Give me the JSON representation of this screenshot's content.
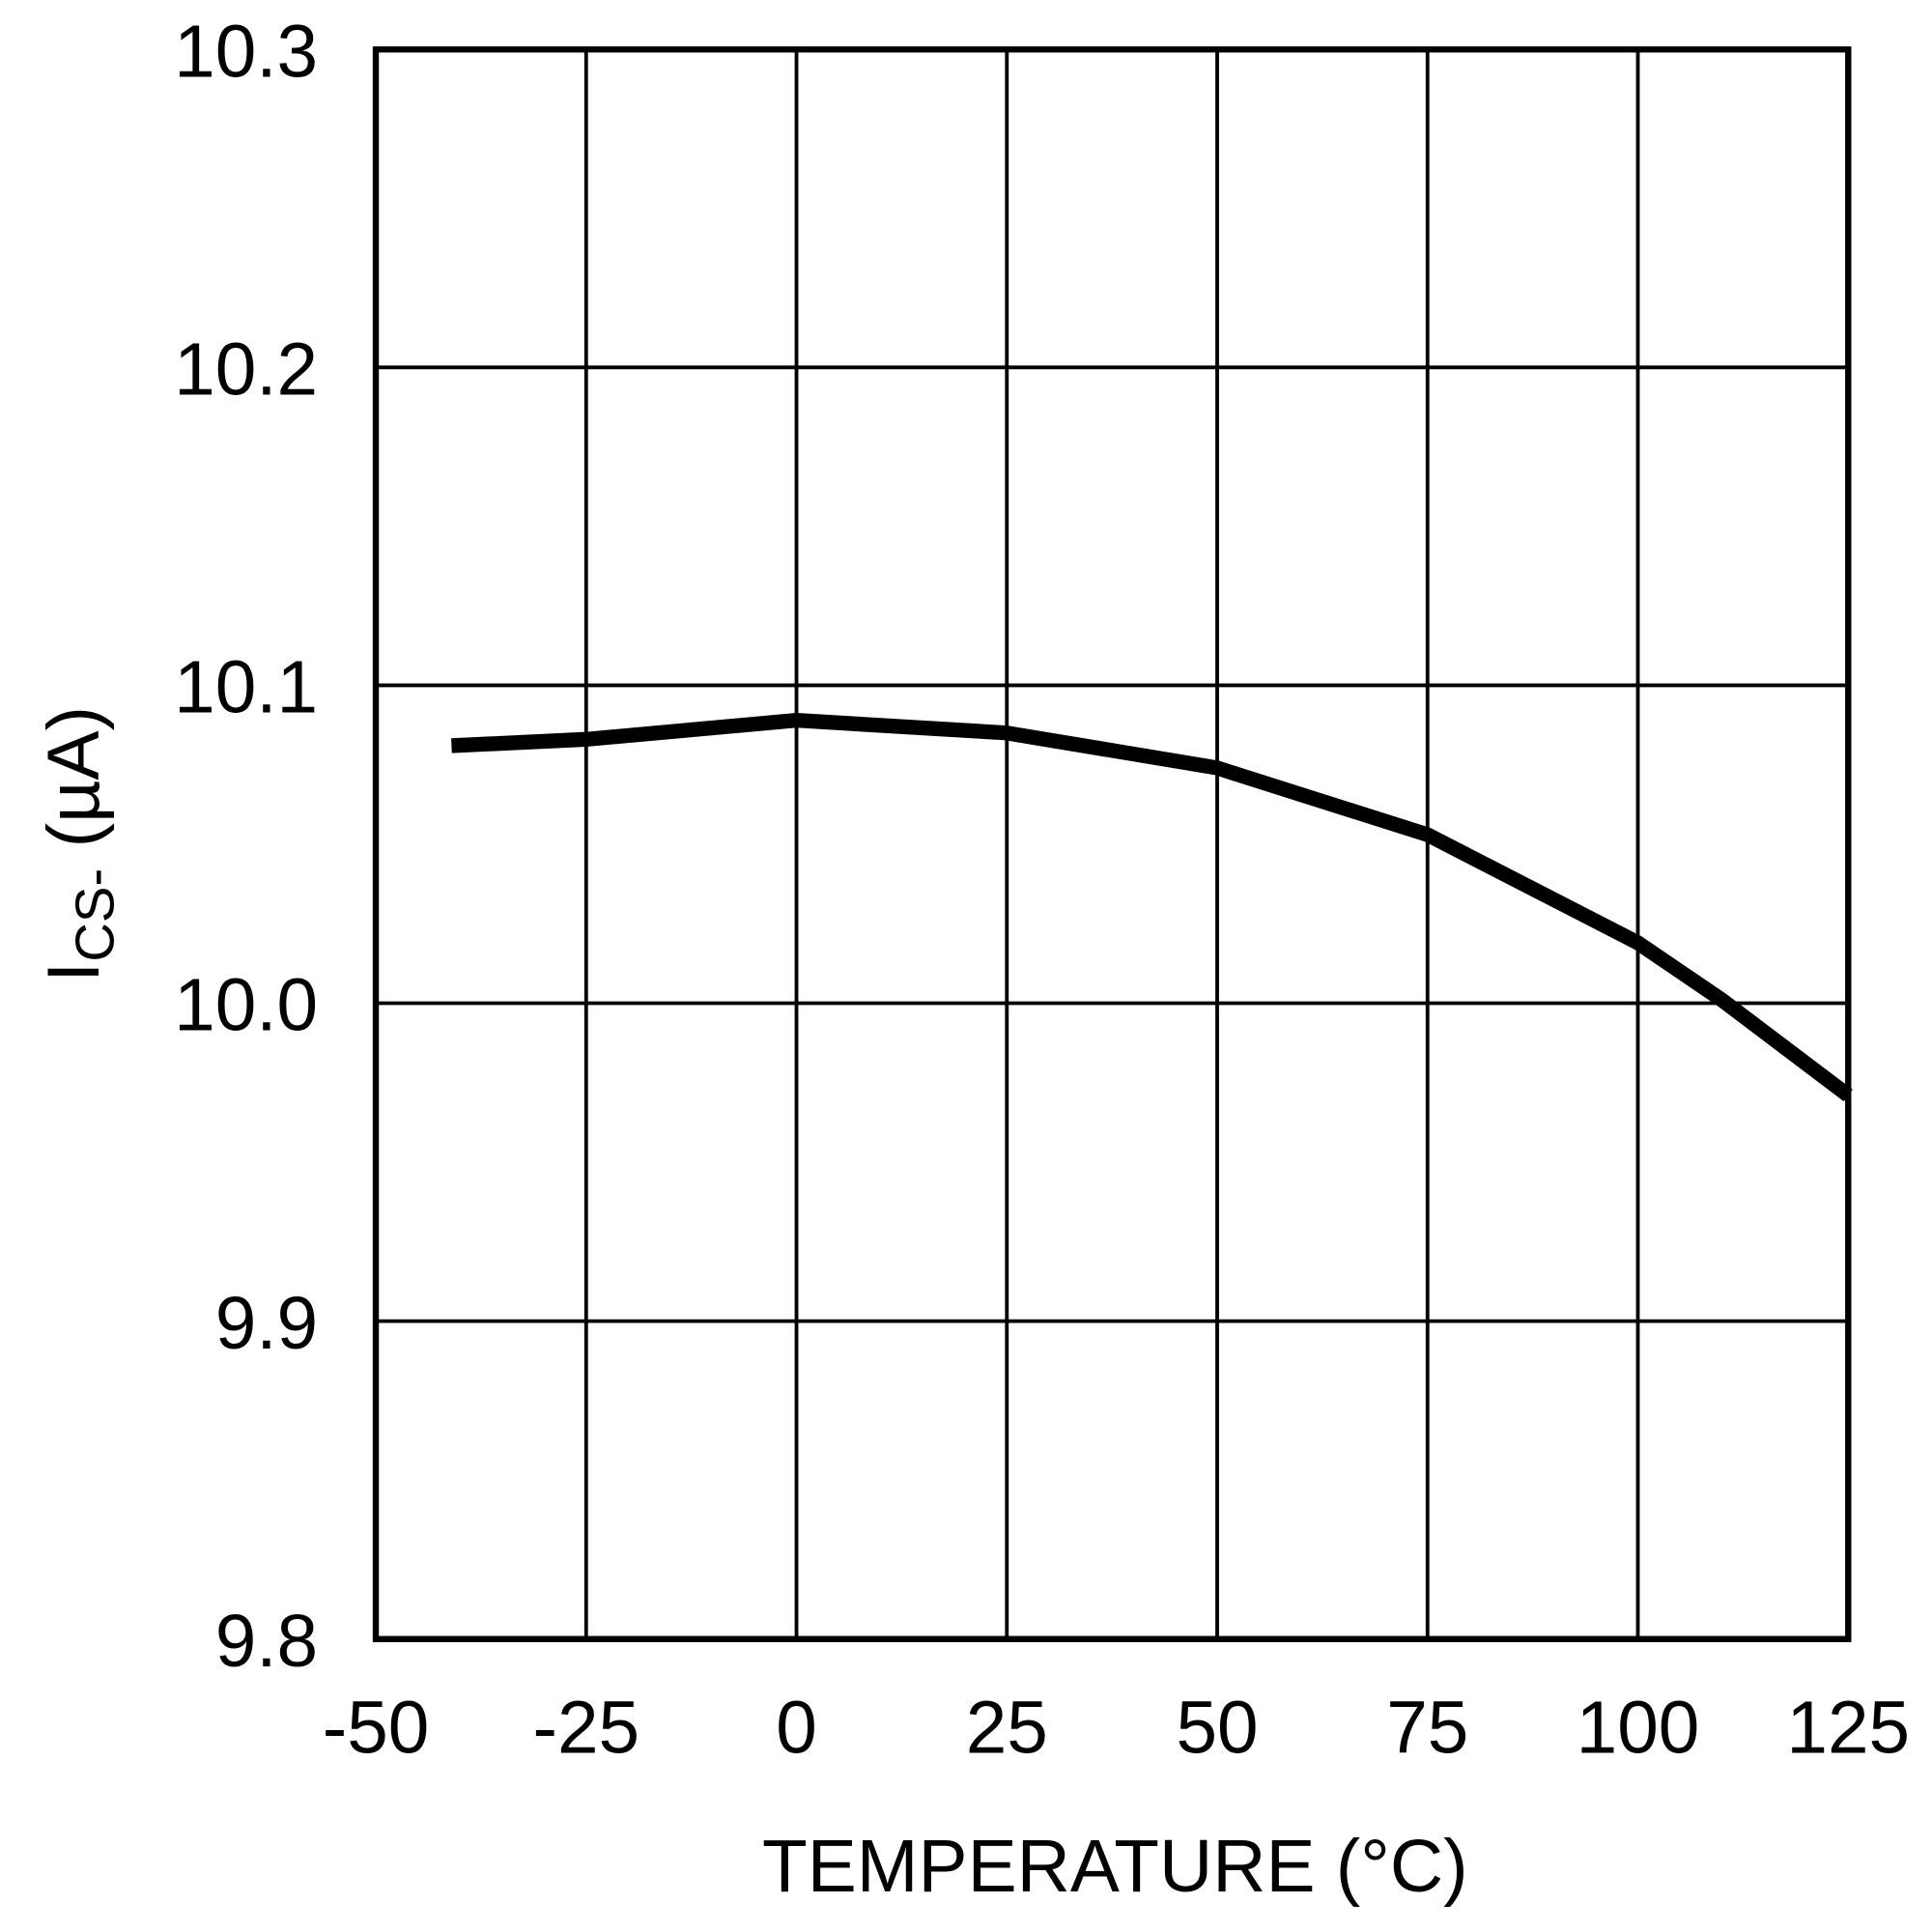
{
  "chart_data": {
    "type": "line",
    "x_label": "TEMPERATURE (°C)",
    "y_label": {
      "main": "I",
      "sub": "CS-",
      "rest": " (µA)"
    },
    "x": [
      -41,
      -25,
      0,
      25,
      50,
      75,
      100,
      110,
      125
    ],
    "series": [
      {
        "name": "ICS-",
        "color": "#000000",
        "values": [
          10.081,
          10.083,
          10.089,
          10.085,
          10.074,
          10.053,
          10.019,
          10.001,
          9.971
        ]
      }
    ],
    "xlim": [
      -50,
      125
    ],
    "xticks": [
      -50,
      -25,
      0,
      25,
      50,
      75,
      100,
      125
    ],
    "ylim": [
      9.8,
      10.3
    ],
    "yticks": [
      9.8,
      9.9,
      {
        "value": 10,
        "label": "10.0"
      },
      10.1,
      10.2,
      10.3
    ],
    "grid": true
  }
}
